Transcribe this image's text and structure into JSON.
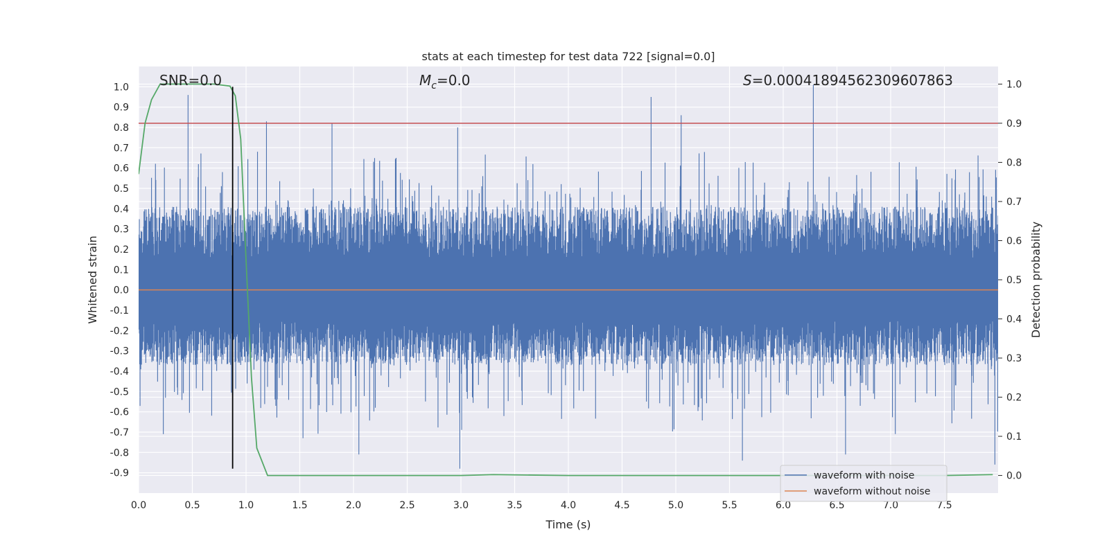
{
  "chart_data": {
    "type": "line",
    "title": "stats at each timestep for test data 722 [signal=0.0]",
    "xlabel": "Time (s)",
    "ylabel_left": "Whitened strain",
    "ylabel_right": "Detection probability",
    "xlim": [
      0.0,
      8.0
    ],
    "ylim_left": [
      -1.0,
      1.1
    ],
    "ylim_right": [
      -0.045,
      1.045
    ],
    "grid": true,
    "x_ticks": [
      "0.0",
      "0.5",
      "1.0",
      "1.5",
      "2.0",
      "2.5",
      "3.0",
      "3.5",
      "4.0",
      "4.5",
      "5.0",
      "5.5",
      "6.0",
      "6.5",
      "7.0",
      "7.5"
    ],
    "x_tick_values": [
      0.0,
      0.5,
      1.0,
      1.5,
      2.0,
      2.5,
      3.0,
      3.5,
      4.0,
      4.5,
      5.0,
      5.5,
      6.0,
      6.5,
      7.0,
      7.5
    ],
    "y_left_ticks": [
      "1.0",
      "0.9",
      "0.8",
      "0.7",
      "0.6",
      "0.5",
      "0.4",
      "0.3",
      "0.2",
      "0.1",
      "0.0",
      "-0.1",
      "-0.2",
      "-0.3",
      "-0.4",
      "-0.5",
      "-0.6",
      "-0.7",
      "-0.8",
      "-0.9"
    ],
    "y_left_tick_values": [
      1.0,
      0.9,
      0.8,
      0.7,
      0.6,
      0.5,
      0.4,
      0.3,
      0.2,
      0.1,
      0.0,
      -0.1,
      -0.2,
      -0.3,
      -0.4,
      -0.5,
      -0.6,
      -0.7,
      -0.8,
      -0.9
    ],
    "y_right_ticks": [
      "1.0",
      "0.9",
      "0.8",
      "0.7",
      "0.6",
      "0.5",
      "0.4",
      "0.3",
      "0.2",
      "0.1",
      "0.0"
    ],
    "y_right_tick_values": [
      1.0,
      0.9,
      0.8,
      0.7,
      0.6,
      0.5,
      0.4,
      0.3,
      0.2,
      0.1,
      0.0
    ],
    "annotations": {
      "snr": "SNR=0.0",
      "mc_symbol": "M",
      "mc_sub": "c",
      "mc_value": "=0.0",
      "s_symbol": "S",
      "s_value": "=0.00041894562309607863"
    },
    "legend": {
      "position": "lower-right",
      "entries": [
        "waveform with noise",
        "waveform without noise"
      ]
    },
    "series": [
      {
        "name": "waveform with noise",
        "color": "#4c72b0",
        "axis": "left",
        "description": "noisy whitened strain, bulk within about -0.35..0.4",
        "spikes": [
          {
            "x": 0.46,
            "y": 0.96
          },
          {
            "x": 1.19,
            "y": 0.83
          },
          {
            "x": 1.8,
            "y": 0.82
          },
          {
            "x": 2.97,
            "y": 0.8
          },
          {
            "x": 4.77,
            "y": 0.95
          },
          {
            "x": 5.05,
            "y": 0.86
          },
          {
            "x": 6.28,
            "y": 1.01
          },
          {
            "x": 0.23,
            "y": -0.71
          },
          {
            "x": 1.53,
            "y": -0.73
          },
          {
            "x": 2.05,
            "y": -0.81
          },
          {
            "x": 2.99,
            "y": -0.88
          },
          {
            "x": 5.62,
            "y": -0.84
          },
          {
            "x": 6.58,
            "y": -0.81
          },
          {
            "x": 7.97,
            "y": -0.86
          }
        ]
      },
      {
        "name": "waveform without noise",
        "color": "#dd8452",
        "axis": "left",
        "x": [
          0.0,
          8.0
        ],
        "y": [
          0.0,
          0.0
        ]
      },
      {
        "name": "detection probability",
        "color": "#55a868",
        "axis": "right",
        "x": [
          0.0,
          0.06,
          0.12,
          0.2,
          0.3,
          0.5,
          0.7,
          0.85,
          0.9,
          0.95,
          1.0,
          1.05,
          1.1,
          1.2,
          1.3,
          2.0,
          3.0,
          3.3,
          4.0,
          6.0,
          7.5,
          7.95
        ],
        "y": [
          0.77,
          0.9,
          0.96,
          1.0,
          1.0,
          1.0,
          1.0,
          0.995,
          0.97,
          0.86,
          0.55,
          0.25,
          0.07,
          0.0,
          0.0,
          0.0,
          0.0,
          0.002,
          0.0,
          0.0,
          0.0,
          0.002
        ]
      },
      {
        "name": "threshold",
        "color": "#c44e52",
        "axis": "right",
        "y_value": 0.9
      },
      {
        "name": "marker",
        "color": "#000000",
        "axis": "left",
        "x_value": 0.875,
        "y_range": [
          -0.88,
          1.0
        ]
      }
    ]
  }
}
